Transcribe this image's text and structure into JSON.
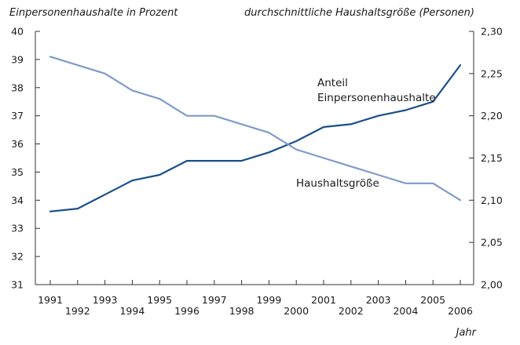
{
  "chart_data": {
    "type": "line",
    "left_axis_title": "Einpersonenhaushalte in Prozent",
    "right_axis_title": "durchschnittliche Haushaltsgröße (Personen)",
    "xlabel": "Jahr",
    "x": [
      1991,
      1992,
      1993,
      1994,
      1995,
      1996,
      1997,
      1998,
      1999,
      2000,
      2001,
      2002,
      2003,
      2004,
      2005,
      2006
    ],
    "x_tick_labels": [
      "1991",
      "1992",
      "1993",
      "1994",
      "1995",
      "1996",
      "1997",
      "1998",
      "1999",
      "2000",
      "2001",
      "2002",
      "2003",
      "2004",
      "2005",
      "2006"
    ],
    "ylim_left": [
      31,
      40
    ],
    "y_ticks_left": [
      "31",
      "32",
      "33",
      "34",
      "35",
      "36",
      "37",
      "38",
      "39",
      "40"
    ],
    "ylim_right": [
      2.0,
      2.3
    ],
    "y_ticks_right": [
      "2,00",
      "2,05",
      "2,10",
      "2,15",
      "2,20",
      "2,25",
      "2,30"
    ],
    "grid": false,
    "series": [
      {
        "name_lines": [
          "Anteil",
          "Einpersonenhaushalte"
        ],
        "axis": "left",
        "color": "#1a4f8a",
        "values": [
          33.6,
          33.7,
          34.2,
          34.7,
          34.9,
          35.4,
          35.4,
          35.4,
          35.7,
          36.1,
          36.6,
          36.7,
          37.0,
          37.2,
          37.5,
          38.8
        ]
      },
      {
        "name_lines": [
          "Haushaltsgröße"
        ],
        "axis": "right",
        "color": "#7d9cc8",
        "values": [
          2.27,
          2.26,
          2.25,
          2.23,
          2.22,
          2.2,
          2.2,
          2.19,
          2.18,
          2.16,
          2.15,
          2.14,
          2.13,
          2.12,
          2.12,
          2.1
        ]
      }
    ]
  }
}
